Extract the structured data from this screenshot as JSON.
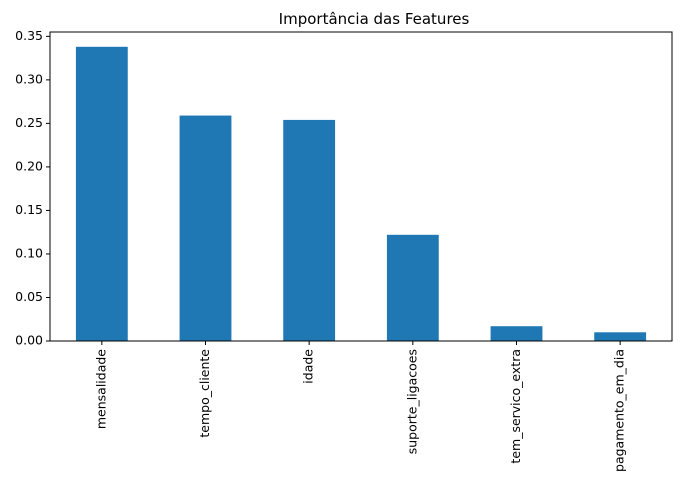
{
  "chart_data": {
    "type": "bar",
    "title": "Importância das Features",
    "xlabel": "",
    "ylabel": "",
    "categories": [
      "mensalidade",
      "tempo_cliente",
      "idade",
      "suporte_ligacoes",
      "tem_servico_extra",
      "pagamento_em_dia"
    ],
    "values": [
      0.338,
      0.259,
      0.254,
      0.122,
      0.017,
      0.01
    ],
    "ylim": [
      0,
      0.355
    ],
    "yticks": [
      "0.00",
      "0.05",
      "0.10",
      "0.15",
      "0.20",
      "0.25",
      "0.30",
      "0.35"
    ],
    "ytick_values": [
      0,
      0.05,
      0.1,
      0.15,
      0.2,
      0.25,
      0.3,
      0.35
    ],
    "grid": false,
    "legend": "none",
    "bar_color": "#1f77b4"
  }
}
